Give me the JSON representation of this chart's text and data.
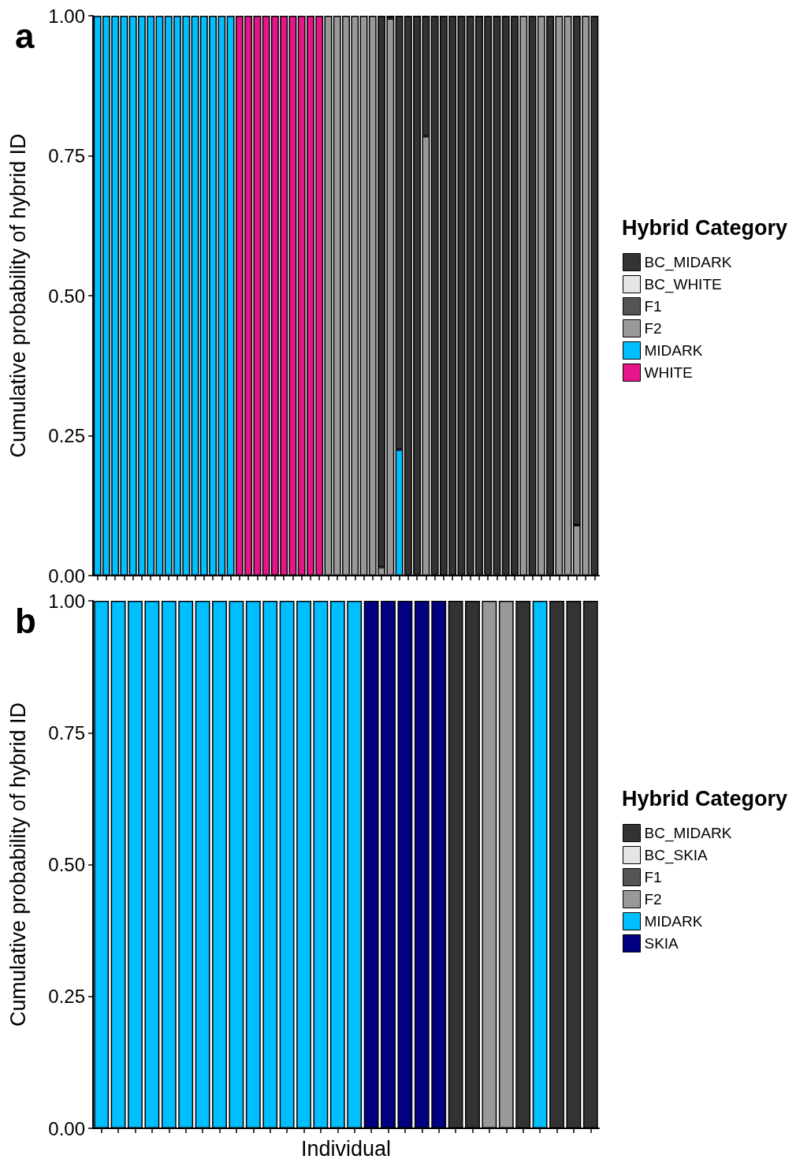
{
  "chart_data": [
    {
      "type": "bar",
      "title": "a",
      "ylabel": "Cumulative probability of hybrid ID",
      "legend_title": "Hybrid Category",
      "legend": "right",
      "stacked": true,
      "tick_labels": "y",
      "grid": false,
      "categories": [
        null,
        null,
        null,
        null,
        null,
        null,
        null,
        null,
        null,
        null,
        null,
        null,
        null,
        null,
        null,
        null,
        null,
        null,
        null,
        null,
        null,
        null,
        null,
        null,
        null,
        null,
        null,
        null,
        null,
        null,
        null,
        null,
        null,
        null,
        null,
        null,
        null,
        null,
        null,
        null,
        null,
        null,
        null,
        null,
        null,
        null,
        null,
        null,
        null,
        null,
        null,
        null,
        null,
        null,
        null,
        null,
        null
      ],
      "ylim": [
        0,
        1
      ],
      "yticks": [
        {
          "value": 0,
          "label": "0.00"
        },
        {
          "value": 0.25,
          "label": "0.25"
        },
        {
          "value": 0.5,
          "label": "0.50"
        },
        {
          "value": 0.75,
          "label": "0.75"
        },
        {
          "value": 1,
          "label": "1.00"
        }
      ],
      "series": [
        {
          "name": "WHITE",
          "color": "#e7158a",
          "values": [
            null,
            null,
            null,
            null,
            null,
            null,
            null,
            null,
            null,
            null,
            null,
            null,
            null,
            null,
            null,
            null,
            1,
            1,
            1,
            1,
            1,
            1,
            1,
            1,
            1,
            1,
            null,
            null,
            null,
            null,
            null,
            null,
            null,
            null,
            null,
            null,
            null,
            null,
            null,
            null,
            null,
            null,
            null,
            null,
            null,
            null,
            null,
            null,
            null,
            null,
            null,
            null,
            null,
            null,
            null,
            null,
            null
          ]
        },
        {
          "name": "MIDARK",
          "color": "#00bfff",
          "values": [
            1,
            1,
            1,
            1,
            1,
            1,
            1,
            1,
            1,
            1,
            1,
            1,
            1,
            1,
            1,
            1,
            null,
            null,
            null,
            null,
            null,
            null,
            null,
            null,
            null,
            null,
            null,
            null,
            null,
            null,
            null,
            null,
            null,
            null,
            0.225,
            null,
            null,
            null,
            null,
            null,
            null,
            null,
            null,
            null,
            null,
            null,
            null,
            null,
            null,
            null,
            null,
            null,
            null,
            null,
            null,
            null,
            null
          ]
        },
        {
          "name": "F2",
          "color": "#999999",
          "values": [
            null,
            null,
            null,
            null,
            null,
            null,
            null,
            null,
            null,
            null,
            null,
            null,
            null,
            null,
            null,
            null,
            null,
            null,
            null,
            null,
            null,
            null,
            null,
            null,
            null,
            null,
            1,
            1,
            1,
            1,
            1,
            1,
            0.015,
            0.995,
            null,
            null,
            null,
            0.785,
            null,
            null,
            null,
            null,
            null,
            null,
            null,
            null,
            null,
            null,
            1,
            null,
            1,
            null,
            1,
            1,
            0.09,
            1,
            null
          ]
        },
        {
          "name": "F1",
          "color": "#555555",
          "values": [
            null,
            null,
            null,
            null,
            null,
            null,
            null,
            null,
            null,
            null,
            null,
            null,
            null,
            null,
            null,
            null,
            null,
            null,
            null,
            null,
            null,
            null,
            null,
            null,
            null,
            null,
            null,
            null,
            null,
            null,
            null,
            null,
            null,
            null,
            null,
            null,
            null,
            null,
            null,
            null,
            null,
            null,
            null,
            null,
            null,
            null,
            null,
            null,
            null,
            null,
            null,
            null,
            null,
            null,
            null,
            null,
            null
          ]
        },
        {
          "name": "BC_WHITE",
          "color": "#e5e5e5",
          "values": [
            null,
            null,
            null,
            null,
            null,
            null,
            null,
            null,
            null,
            null,
            null,
            null,
            null,
            null,
            null,
            null,
            null,
            null,
            null,
            null,
            null,
            null,
            null,
            null,
            null,
            null,
            null,
            null,
            null,
            null,
            null,
            null,
            null,
            null,
            null,
            null,
            null,
            null,
            null,
            null,
            null,
            null,
            null,
            null,
            null,
            null,
            null,
            null,
            null,
            null,
            null,
            null,
            null,
            null,
            null,
            null,
            null
          ]
        },
        {
          "name": "BC_MIDARK",
          "color": "#333333",
          "values": [
            null,
            null,
            null,
            null,
            null,
            null,
            null,
            null,
            null,
            null,
            null,
            null,
            null,
            null,
            null,
            null,
            null,
            null,
            null,
            null,
            null,
            null,
            null,
            null,
            null,
            null,
            null,
            null,
            null,
            null,
            null,
            null,
            0.985,
            0.005,
            0.775,
            1,
            1,
            0.215,
            1,
            1,
            1,
            1,
            1,
            1,
            1,
            1,
            1,
            1,
            null,
            1,
            null,
            1,
            null,
            null,
            0.91,
            null,
            1
          ]
        }
      ]
    },
    {
      "type": "bar",
      "title": "b",
      "ylabel": "Cumulative probability of hybrid ID",
      "xlabel": "Individual",
      "legend_title": "Hybrid Category",
      "legend": "right",
      "stacked": true,
      "tick_labels": "y",
      "grid": false,
      "categories": [
        null,
        null,
        null,
        null,
        null,
        null,
        null,
        null,
        null,
        null,
        null,
        null,
        null,
        null,
        null,
        null,
        null,
        null,
        null,
        null,
        null,
        null,
        null,
        null,
        null,
        null,
        null,
        null,
        null,
        null
      ],
      "ylim": [
        0,
        1
      ],
      "yticks": [
        {
          "value": 0,
          "label": "0.00"
        },
        {
          "value": 0.25,
          "label": "0.25"
        },
        {
          "value": 0.5,
          "label": "0.50"
        },
        {
          "value": 0.75,
          "label": "0.75"
        },
        {
          "value": 1,
          "label": "1.00"
        }
      ],
      "series": [
        {
          "name": "SKIA",
          "color": "#000080",
          "values": [
            null,
            null,
            null,
            null,
            null,
            null,
            null,
            null,
            null,
            null,
            null,
            null,
            null,
            null,
            null,
            null,
            1,
            1,
            1,
            1,
            1,
            null,
            null,
            null,
            null,
            null,
            null,
            null,
            null,
            null
          ]
        },
        {
          "name": "MIDARK",
          "color": "#00bfff",
          "values": [
            1,
            1,
            1,
            1,
            1,
            1,
            1,
            1,
            1,
            1,
            1,
            1,
            1,
            1,
            1,
            1,
            null,
            null,
            null,
            null,
            null,
            null,
            null,
            null,
            null,
            null,
            1,
            null,
            null,
            null
          ]
        },
        {
          "name": "F2",
          "color": "#999999",
          "values": [
            null,
            null,
            null,
            null,
            null,
            null,
            null,
            null,
            null,
            null,
            null,
            null,
            null,
            null,
            null,
            null,
            null,
            null,
            null,
            null,
            null,
            null,
            null,
            1,
            1,
            null,
            null,
            null,
            null,
            null
          ]
        },
        {
          "name": "F1",
          "color": "#555555",
          "values": [
            null,
            null,
            null,
            null,
            null,
            null,
            null,
            null,
            null,
            null,
            null,
            null,
            null,
            null,
            null,
            null,
            null,
            null,
            null,
            null,
            null,
            null,
            null,
            null,
            null,
            null,
            null,
            null,
            null,
            null
          ]
        },
        {
          "name": "BC_SKIA",
          "color": "#e5e5e5",
          "values": [
            null,
            null,
            null,
            null,
            null,
            null,
            null,
            null,
            null,
            null,
            null,
            null,
            null,
            null,
            null,
            null,
            null,
            null,
            null,
            null,
            null,
            null,
            null,
            null,
            null,
            null,
            null,
            null,
            null,
            null
          ]
        },
        {
          "name": "BC_MIDARK",
          "color": "#333333",
          "values": [
            null,
            null,
            null,
            null,
            null,
            null,
            null,
            null,
            null,
            null,
            null,
            null,
            null,
            null,
            null,
            null,
            null,
            null,
            null,
            null,
            null,
            1,
            1,
            null,
            null,
            1,
            null,
            1,
            1,
            1
          ]
        }
      ]
    }
  ]
}
